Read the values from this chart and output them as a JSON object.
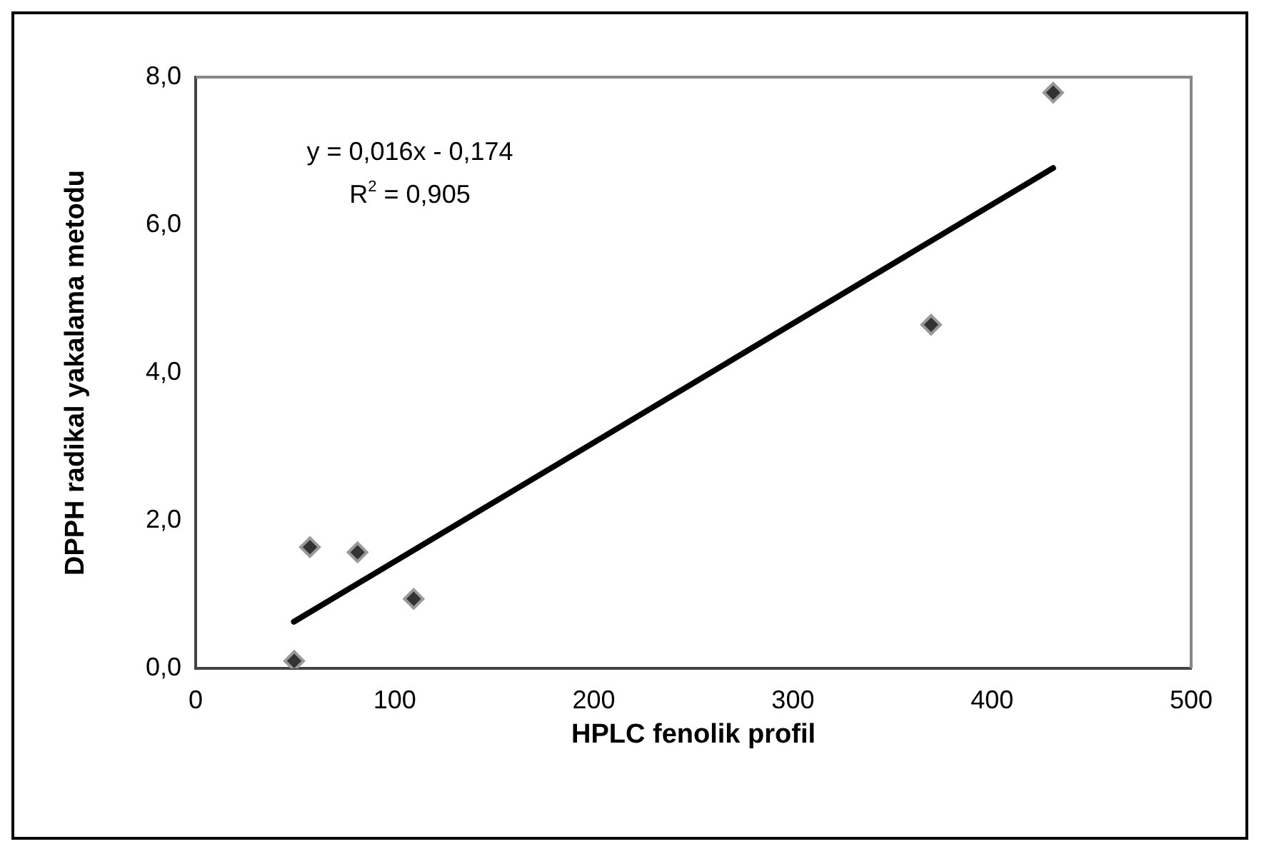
{
  "chart_data": {
    "type": "scatter",
    "xlabel": "HPLC fenolik profil",
    "ylabel": "DPPH radikal yakalama metodu",
    "xlim": [
      0,
      500
    ],
    "xticks": [
      0,
      100,
      200,
      300,
      400,
      500
    ],
    "ylim": [
      0,
      8
    ],
    "yticks": [
      {
        "value": 0,
        "label": "0,0"
      },
      {
        "value": 2,
        "label": "2,0"
      },
      {
        "value": 4,
        "label": "4,0"
      },
      {
        "value": 6,
        "label": "6,0"
      },
      {
        "value": 8,
        "label": "8,0"
      }
    ],
    "grid": false,
    "legend": false,
    "marker": "diamond",
    "series": [
      {
        "color": "#333333",
        "x": [
          49.5,
          57.4,
          81.3,
          109.5,
          369.4,
          430.7
        ],
        "values": [
          0.1,
          1.64,
          1.57,
          0.94,
          4.65,
          7.79
        ]
      },
      {
        "type": "line",
        "color": "#000000",
        "marker": "none",
        "line_style": "solid",
        "x": [
          49.3,
          430.7
        ],
        "values": [
          0.63,
          6.77
        ]
      }
    ],
    "annotations": [
      "y = 0,016x - 0,174",
      "R$^{2}$ = 0,905"
    ]
  }
}
